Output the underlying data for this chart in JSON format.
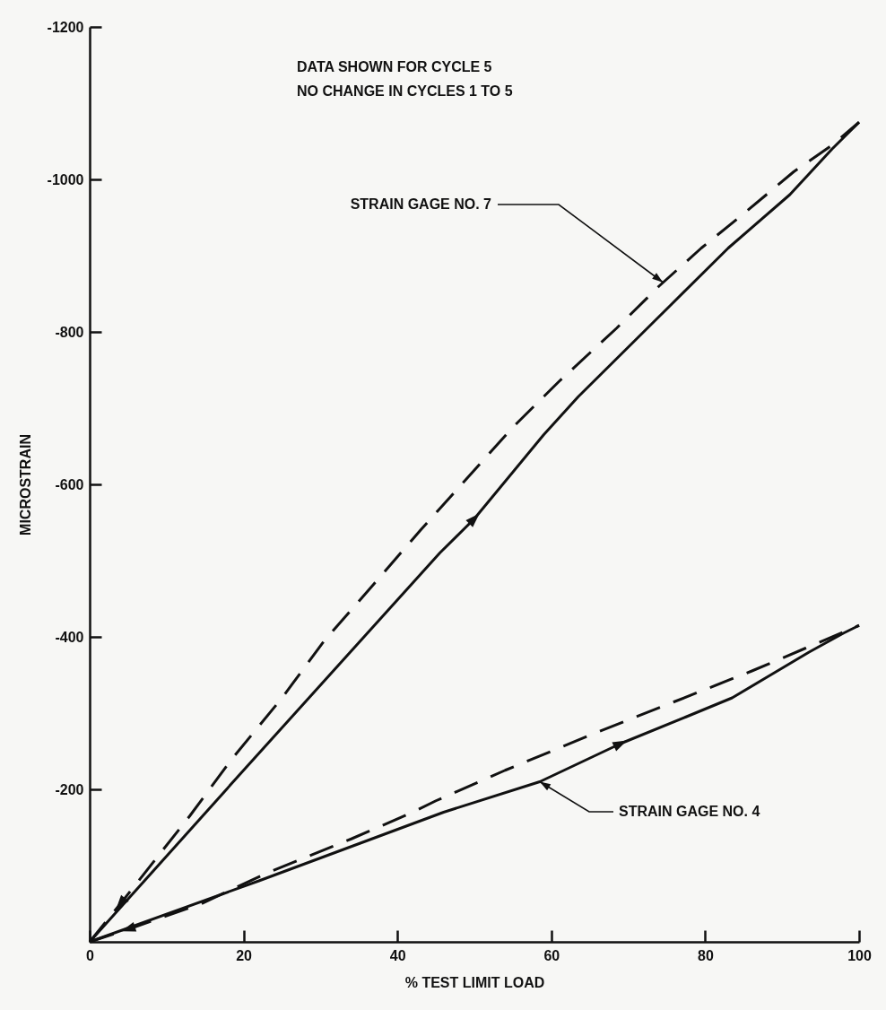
{
  "chart_data": {
    "type": "line",
    "xlabel": "% TEST LIMIT LOAD",
    "ylabel": "MICROSTRAIN",
    "xlim": [
      0,
      100
    ],
    "xticks": [
      0,
      20,
      40,
      60,
      80,
      100
    ],
    "ylim": [
      0,
      -1200
    ],
    "yticks": [
      -200,
      -400,
      -600,
      -800,
      -1000,
      -1200
    ],
    "series": [
      {
        "color": "#111111",
        "line_style": "solid",
        "x": [
          0,
          20,
          45.5,
          50,
          59,
          63.5,
          75.5,
          83,
          91,
          96.5,
          100
        ],
        "values": [
          0,
          -225,
          -510,
          -555,
          -665,
          -715,
          -835,
          -910,
          -980,
          -1040,
          -1075
        ]
      },
      {
        "color": "#111111",
        "line_style": "dashed",
        "x": [
          0,
          4,
          13,
          18.5,
          25,
          30.5,
          37,
          43,
          55,
          61,
          68.5,
          74,
          79.5,
          85,
          91.5,
          96.5,
          100
        ],
        "values": [
          0,
          -50,
          -165,
          -240,
          -320,
          -395,
          -470,
          -540,
          -675,
          -735,
          -805,
          -860,
          -910,
          -955,
          -1010,
          -1045,
          -1075
        ]
      },
      {
        "color": "#111111",
        "line_style": "solid",
        "x": [
          0,
          22,
          30,
          46,
          58.5,
          69,
          77.5,
          83.5,
          88.5,
          93.5,
          98,
          100
        ],
        "values": [
          0,
          -80,
          -110,
          -170,
          -210,
          -260,
          -295,
          -320,
          -350,
          -380,
          -405,
          -415
        ]
      },
      {
        "color": "#111111",
        "line_style": "dashed",
        "x": [
          0,
          6,
          14.5,
          23,
          34,
          42,
          45,
          54,
          66,
          76,
          86,
          93,
          100
        ],
        "values": [
          0,
          -20,
          -50,
          -90,
          -135,
          -170,
          -185,
          -225,
          -275,
          -315,
          -355,
          -385,
          -415
        ]
      }
    ],
    "annotations": [
      "DATA SHOWN FOR CYCLE 5",
      "NO CHANGE IN CYCLES 1 TO 5",
      {
        "text": "STRAIN GAGE NO. 7",
        "x": 74.5,
        "y": -865
      },
      {
        "text": "STRAIN GAGE NO. 4",
        "x": 58.5,
        "y": -210
      }
    ]
  }
}
